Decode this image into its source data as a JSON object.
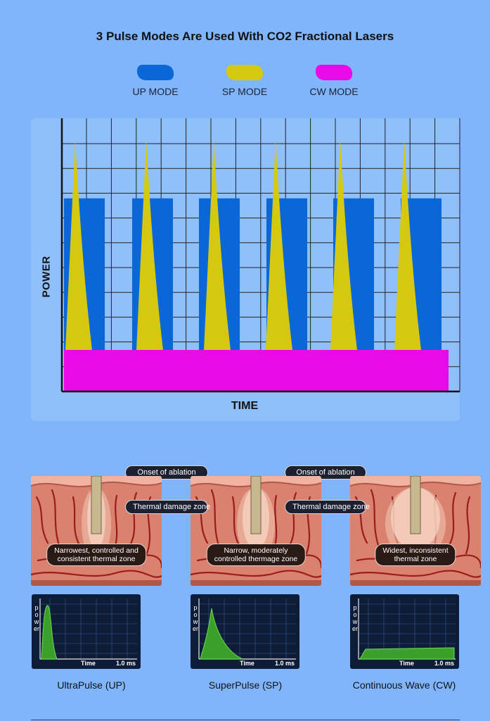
{
  "title": "3 Pulse Modes Are Used With CO2 Fractional Lasers",
  "legend": [
    {
      "label": "UP MODE",
      "color": "#0a67d8"
    },
    {
      "label": "SP MODE",
      "color": "#d4c810"
    },
    {
      "label": "CW MODE",
      "color": "#e80be8"
    }
  ],
  "chart_data": {
    "type": "area",
    "title": "3 Pulse Modes Are Used With CO2 Fractional Lasers",
    "xlabel": "TIME",
    "ylabel": "POWER",
    "grid": true,
    "series": [
      {
        "name": "UP MODE",
        "shape": "rectangular pulses",
        "pulse_count": 6,
        "level": 0.72,
        "color": "#0a67d8"
      },
      {
        "name": "SP MODE",
        "shape": "spike pulses",
        "pulse_count": 6,
        "level": 1.0,
        "color": "#d4c810"
      },
      {
        "name": "CW MODE",
        "shape": "continuous",
        "level": 0.15,
        "color": "#e80be8"
      }
    ]
  },
  "annotations": {
    "onset_of_ablation": "Onset of ablation",
    "thermal_damage_zone": "Thermal damage zone"
  },
  "modes": [
    {
      "name": "UltraPulse (UP)",
      "caption": [
        "Narrowest, controlled and",
        "consistent thermal zone"
      ],
      "mini_chart": {
        "ylabel": "power",
        "xlabel": "Time",
        "x_max_label": "1.0 ms",
        "shape": "narrow-peak"
      }
    },
    {
      "name": "SuperPulse (SP)",
      "caption": [
        "Narrow, moderately",
        "controlled thermage zone"
      ],
      "mini_chart": {
        "ylabel": "power",
        "xlabel": "Time",
        "x_max_label": "1.0 ms",
        "shape": "decaying-spike"
      }
    },
    {
      "name": "Continuous Wave (CW)",
      "caption": [
        "Widest, inconsistent",
        "thermal zone"
      ],
      "mini_chart": {
        "ylabel": "power",
        "xlabel": "Time",
        "x_max_label": "1.0 ms",
        "shape": "flat-plateau"
      }
    }
  ]
}
